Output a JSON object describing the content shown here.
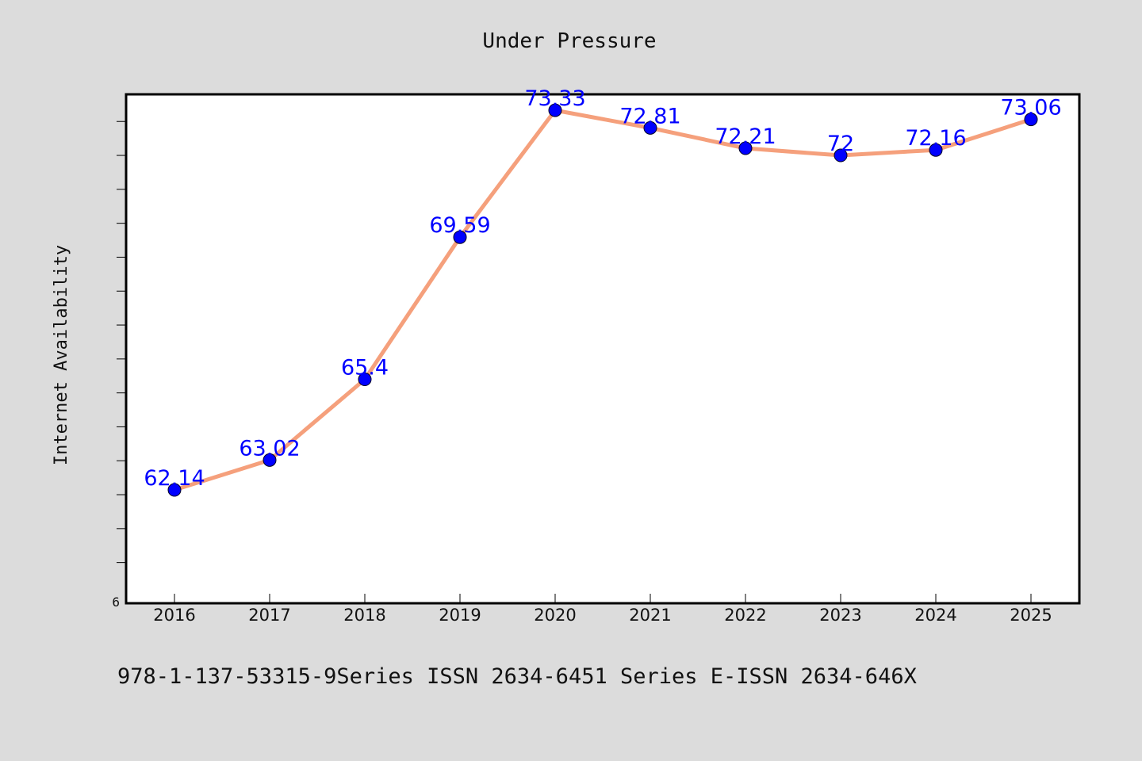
{
  "colors": {
    "background": "#dcdcdc",
    "plot_background": "#ffffff",
    "line": "#f5a07c",
    "marker": "#0000ff",
    "data_label": "#0000ff",
    "text": "#111111"
  },
  "footer": {
    "text": "978-1-137-53315-9Series ISSN 2634-6451 Series E-ISSN 2634-646X"
  },
  "chart_data": {
    "type": "line",
    "title": "Under Pressure",
    "xlabel": "",
    "ylabel": "Internet Availability",
    "categories": [
      "2016",
      "2017",
      "2018",
      "2019",
      "2020",
      "2021",
      "2022",
      "2023",
      "2024",
      "2025"
    ],
    "series": [
      {
        "values": [
          62.14,
          63.02,
          65.4,
          69.59,
          73.33,
          72.81,
          72.21,
          72.0,
          72.16,
          73.06
        ],
        "labels": [
          "62.14",
          "63.02",
          "65.4",
          "69.59",
          "73.33",
          "72.81",
          "72.21",
          "72",
          "72.16",
          "73.06"
        ]
      }
    ],
    "y_tick_labels": [
      "6"
    ],
    "ylim": [
      58.8,
      73.8
    ],
    "y_minor_step": 1,
    "grid": false,
    "legend": "none",
    "markers": true
  }
}
